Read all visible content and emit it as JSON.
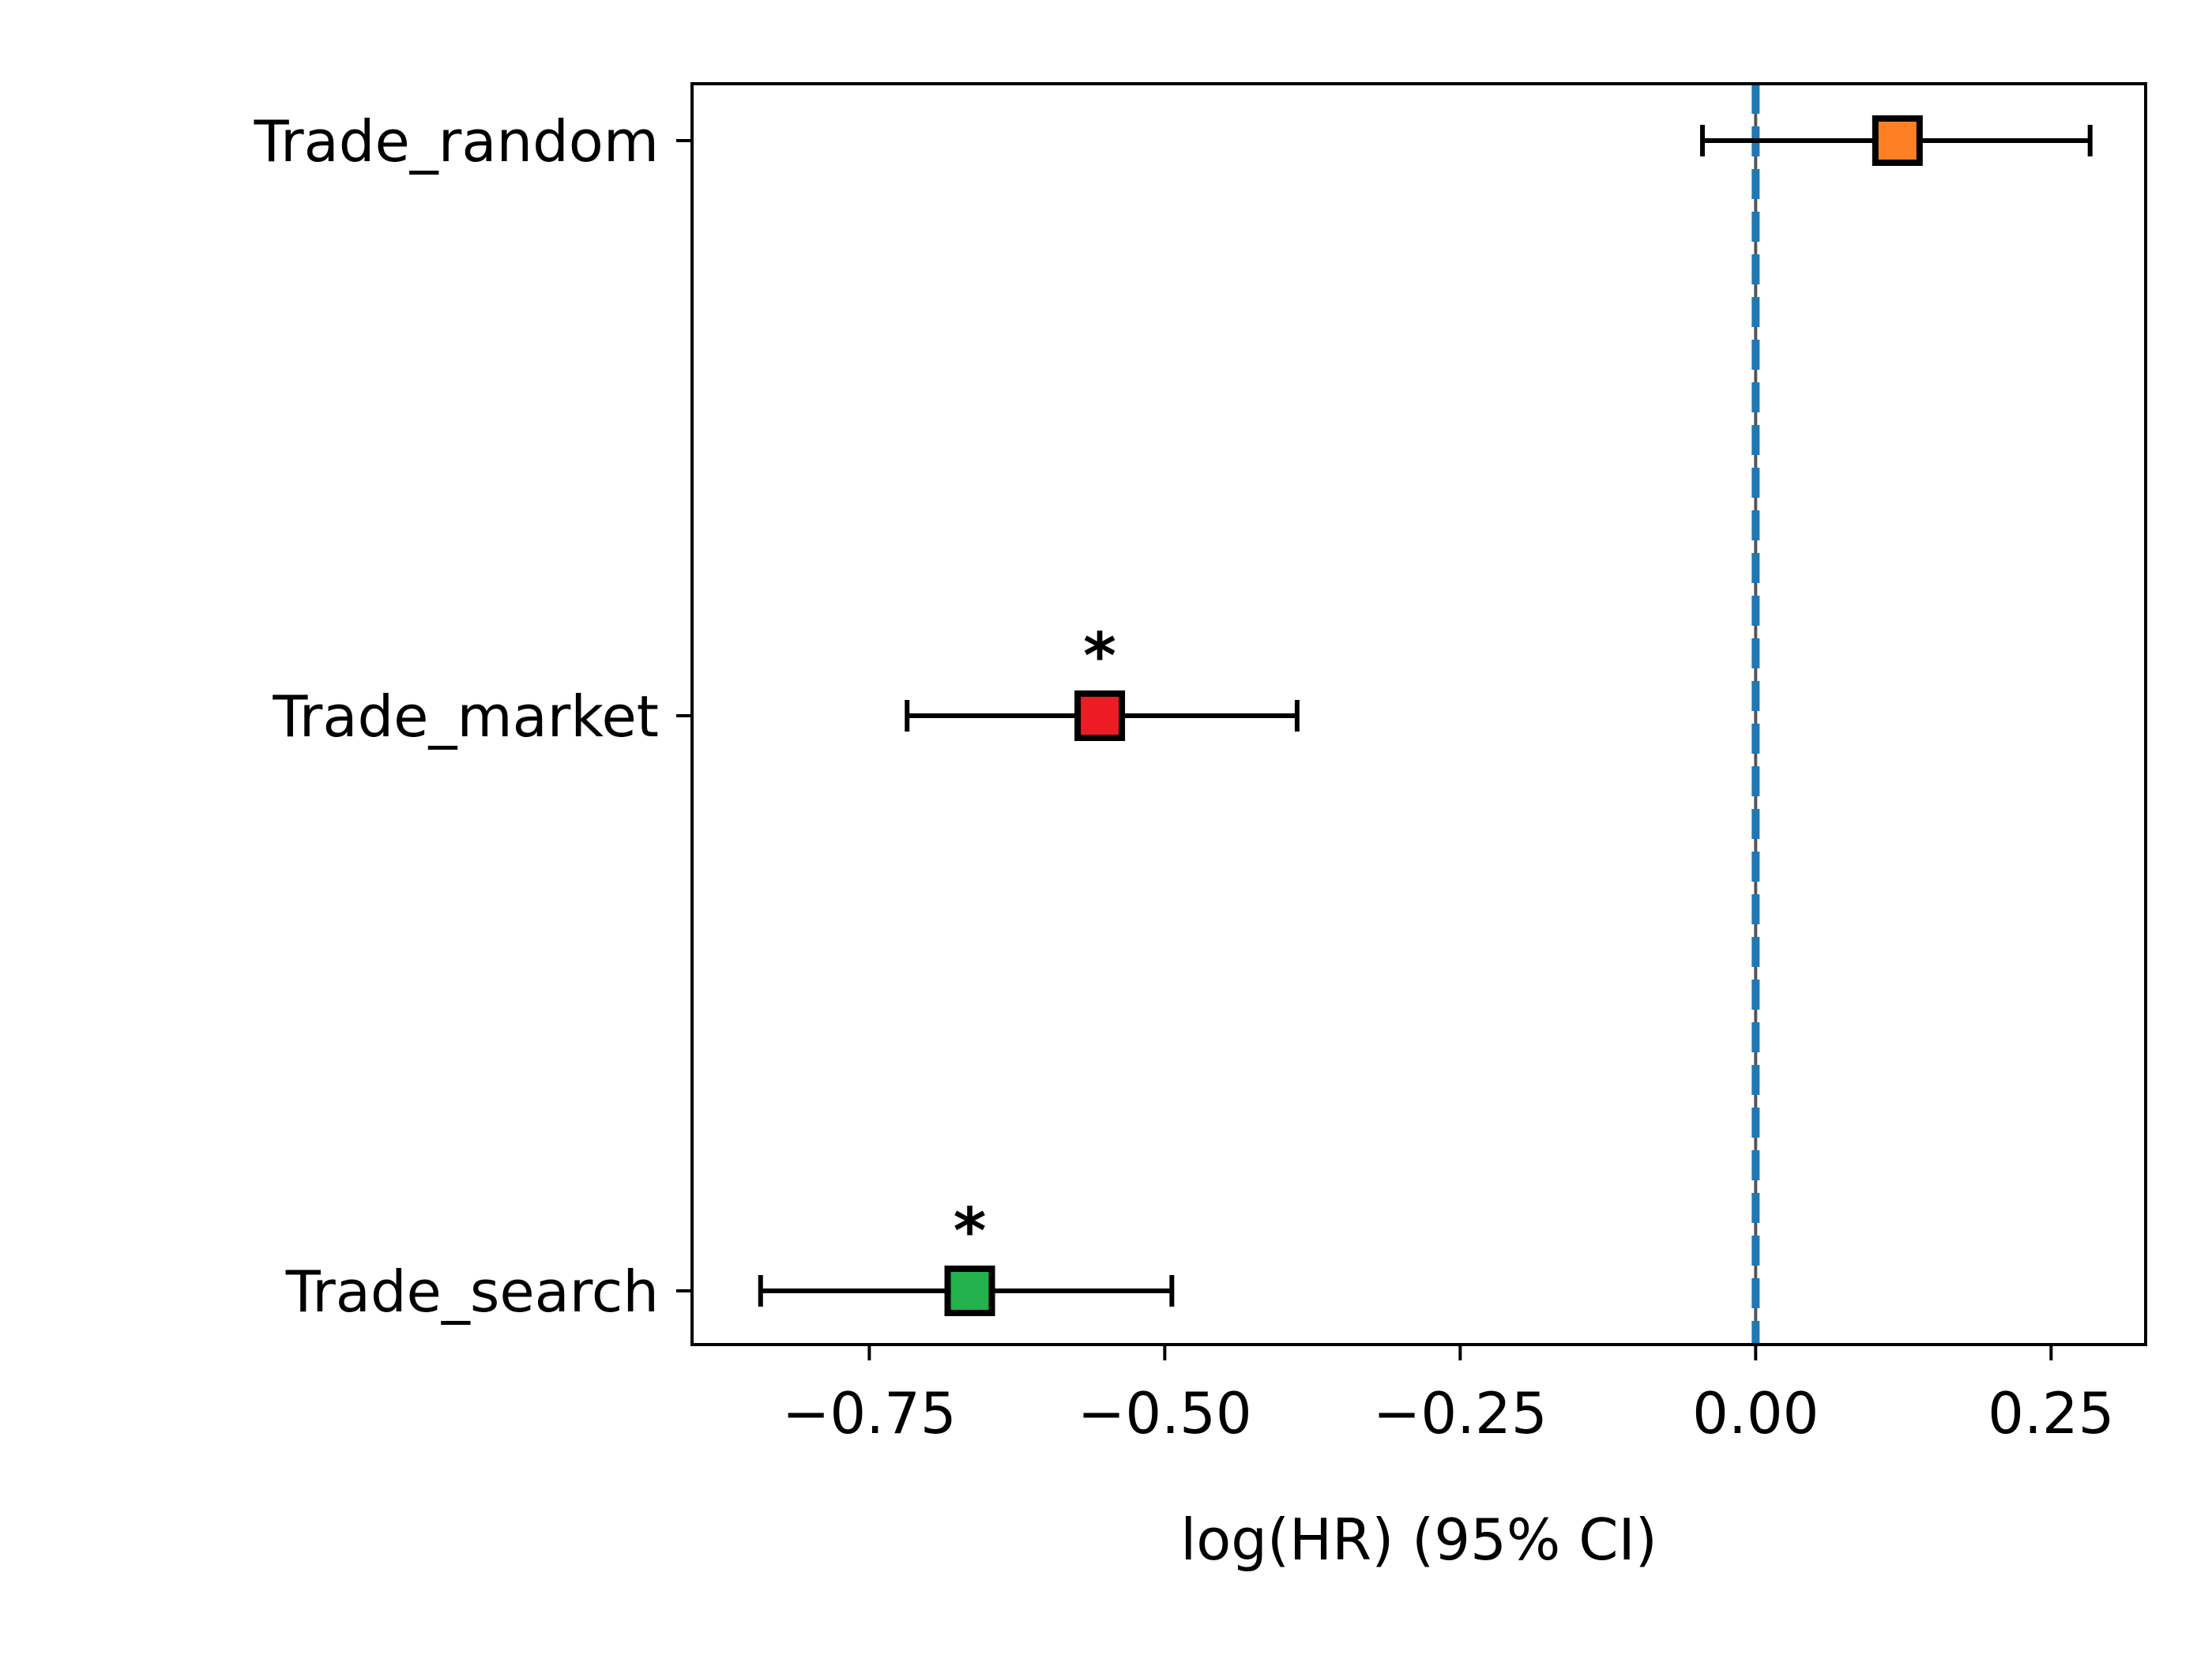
{
  "chart_data": {
    "type": "forest",
    "title": "",
    "xlabel": "log(HR) (95% CI)",
    "ylabel": "",
    "xlim": [
      -0.9,
      0.33
    ],
    "xticks": [
      -0.75,
      -0.5,
      -0.25,
      0.0,
      0.25
    ],
    "xtick_labels": [
      "−0.75",
      "−0.50",
      "−0.25",
      "0.00",
      "0.25"
    ],
    "reference_line": {
      "x": 0.0,
      "style": "dashed",
      "color": "#1f77b4"
    },
    "grid": false,
    "categories": [
      "Trade_random",
      "Trade_market",
      "Trade_search"
    ],
    "estimates": [
      {
        "label": "Trade_random",
        "estimate": 0.12,
        "ci_low": -0.045,
        "ci_high": 0.283,
        "significance": "",
        "color": "#ff7f27"
      },
      {
        "label": "Trade_market",
        "estimate": -0.555,
        "ci_low": -0.718,
        "ci_high": -0.388,
        "significance": "*",
        "color": "#ed1c24"
      },
      {
        "label": "Trade_search",
        "estimate": -0.665,
        "ci_low": -0.842,
        "ci_high": -0.494,
        "significance": "*",
        "color": "#22b14c"
      }
    ]
  }
}
